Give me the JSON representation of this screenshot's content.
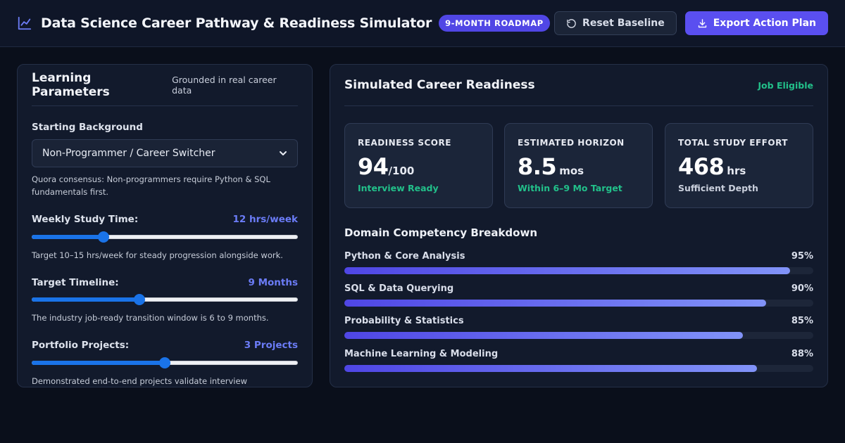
{
  "header": {
    "title": "Data Science Career Pathway & Readiness Simulator",
    "badge": "9-MONTH ROADMAP",
    "reset_label": "Reset Baseline",
    "export_label": "Export Action Plan"
  },
  "parameters": {
    "title": "Learning Parameters",
    "subtitle": "Grounded in real career data",
    "background": {
      "label": "Starting Background",
      "selected": "Non-Programmer / Career Switcher",
      "hint": "Quora consensus: Non-programmers require Python & SQL fundamentals first."
    },
    "study_time": {
      "label": "Weekly Study Time:",
      "value_text": "12 hrs/week",
      "fraction": 0.27,
      "hint": "Target 10–15 hrs/week for steady progression alongside work."
    },
    "timeline": {
      "label": "Target Timeline:",
      "value_text": "9 Months",
      "fraction": 0.405,
      "hint": "The industry job-ready transition window is 6 to 9 months."
    },
    "projects": {
      "label": "Portfolio Projects:",
      "value_text": "3 Projects",
      "fraction": 0.5,
      "hint": "Demonstrated end-to-end projects validate interview competence."
    }
  },
  "readiness": {
    "title": "Simulated Career Readiness",
    "status": "Job Eligible",
    "score": {
      "label": "READINESS SCORE",
      "value": "94",
      "unit": "/100",
      "note": "Interview Ready"
    },
    "horizon": {
      "label": "ESTIMATED HORIZON",
      "value": "8.5",
      "unit": "mos",
      "note": "Within 6–9 Mo Target"
    },
    "effort": {
      "label": "TOTAL STUDY EFFORT",
      "value": "468",
      "unit": "hrs",
      "note": "Sufficient Depth"
    },
    "breakdown_title": "Domain Competency Breakdown",
    "competencies": [
      {
        "name": "Python & Core Analysis",
        "pct_text": "95%",
        "pct": 95
      },
      {
        "name": "SQL & Data Querying",
        "pct_text": "90%",
        "pct": 90
      },
      {
        "name": "Probability & Statistics",
        "pct_text": "85%",
        "pct": 85
      },
      {
        "name": "Machine Learning & Modeling",
        "pct_text": "88%",
        "pct": 88
      }
    ]
  },
  "colors": {
    "accent": "#5a4ff0",
    "success": "#22c08a",
    "slider": "#1a73e8"
  }
}
